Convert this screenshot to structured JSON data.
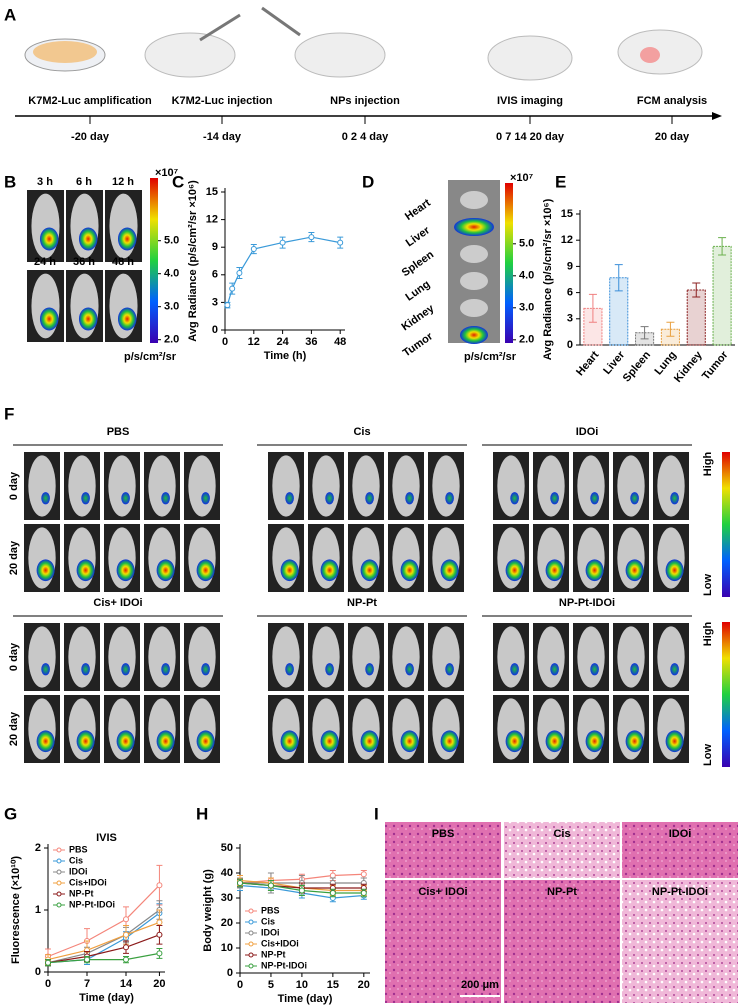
{
  "panel_labels": [
    "A",
    "B",
    "C",
    "D",
    "E",
    "F",
    "G",
    "H",
    "I"
  ],
  "timeline": {
    "steps": [
      {
        "label": "K7M2-Luc amplification",
        "day": "-20 day"
      },
      {
        "label": "K7M2-Luc injection",
        "day": "-14 day"
      },
      {
        "label": "NPs injection",
        "day": "0  2  4  day"
      },
      {
        "label": "IVIS imaging",
        "day": "0  7  14  20 day"
      },
      {
        "label": "FCM analysis",
        "day": "20 day"
      }
    ]
  },
  "panel_b": {
    "times": [
      "3 h",
      "6 h",
      "12 h",
      "24 h",
      "36 h",
      "48 h"
    ],
    "colorbar": {
      "multiplier": "×10⁷",
      "unit": "p/s/cm²/sr",
      "range": [
        1.9,
        6.9
      ],
      "ticks": [
        {
          "value": 5,
          "label": "5.0"
        },
        {
          "value": 4,
          "label": "4.0"
        },
        {
          "value": 3,
          "label": "3.0"
        },
        {
          "value": 2,
          "label": "2.0"
        }
      ]
    }
  },
  "panel_d": {
    "organs": [
      "Heart",
      "Liver",
      "Spleen",
      "Lung",
      "Kidney",
      "Tumor"
    ],
    "colorbar": {
      "multiplier": "×10⁷",
      "unit": "p/s/cm²/sr",
      "range": [
        1.9,
        6.9
      ],
      "ticks": [
        {
          "value": 5,
          "label": "5.0"
        },
        {
          "value": 4,
          "label": "4.0"
        },
        {
          "value": 3,
          "label": "3.0"
        },
        {
          "value": 2,
          "label": "2.0"
        }
      ]
    }
  },
  "panel_f": {
    "groups": [
      "PBS",
      "Cis",
      "IDOi",
      "Cis+ IDOi",
      "NP-Pt",
      "NP-Pt-IDOi"
    ],
    "rows": [
      "0 day",
      "20 day"
    ],
    "scale_high": "High",
    "scale_low": "Low"
  },
  "panel_i": {
    "groups": [
      "PBS",
      "Cis",
      "IDOi",
      "Cis+ IDOi",
      "NP-Pt",
      "NP-Pt-IDOi"
    ],
    "scale_bar": "200 μm"
  },
  "chart_data": [
    {
      "type": "line",
      "ylabel": "Avg Radiance (p/s/cm²/sr ×10⁶)",
      "xlabel": "Time (h)",
      "x": [
        1,
        3,
        6,
        12,
        24,
        36,
        48
      ],
      "series": [
        {
          "color": "#3a9ad9",
          "values": [
            2.7,
            4.5,
            6.2,
            8.8,
            9.5,
            10.1,
            9.5
          ],
          "errors": [
            0.3,
            0.6,
            0.6,
            0.5,
            0.6,
            0.5,
            0.6
          ]
        }
      ],
      "xlim": [
        0,
        50
      ],
      "xticks": [
        0,
        12,
        24,
        36,
        48
      ],
      "ylim": [
        0,
        15
      ],
      "yticks": [
        0,
        3,
        6,
        9,
        12,
        15
      ]
    },
    {
      "type": "bar",
      "ylabel": "Avg Radiance (p/s/cm²/sr ×10⁶)",
      "categories": [
        "Heart",
        "Liver",
        "Spleen",
        "Lung",
        "Kidney",
        "Tumor"
      ],
      "values": [
        4.2,
        7.7,
        1.4,
        1.8,
        6.3,
        11.3
      ],
      "errors": [
        1.6,
        1.5,
        0.7,
        0.8,
        0.8,
        1.0
      ],
      "colors": [
        "#f08080",
        "#3b8fd9",
        "#777777",
        "#e8a040",
        "#8b2020",
        "#6ab04c"
      ],
      "ylim": [
        0,
        15
      ],
      "yticks": [
        0,
        3,
        6,
        9,
        12,
        15
      ]
    },
    {
      "type": "line",
      "title": "IVIS",
      "ylabel": "Fluorescence (×10¹⁰)",
      "xlabel": "Time (day)",
      "x": [
        0,
        7,
        14,
        20
      ],
      "legend": "upper left",
      "series": [
        {
          "name": "PBS",
          "color": "#f4857a",
          "values": [
            0.25,
            0.5,
            0.85,
            1.4
          ],
          "errors": [
            0.12,
            0.2,
            0.2,
            0.32
          ]
        },
        {
          "name": "Cis",
          "color": "#3a9ad9",
          "values": [
            0.15,
            0.2,
            0.55,
            0.95
          ],
          "errors": [
            0.05,
            0.08,
            0.1,
            0.15
          ]
        },
        {
          "name": "IDOi",
          "color": "#888888",
          "values": [
            0.15,
            0.3,
            0.6,
            1.0
          ],
          "errors": [
            0.05,
            0.1,
            0.12,
            0.15
          ]
        },
        {
          "name": "Cis+IDOi",
          "color": "#f0a040",
          "values": [
            0.2,
            0.35,
            0.6,
            0.8
          ],
          "errors": [
            0.08,
            0.15,
            0.15,
            0.2
          ]
        },
        {
          "name": "NP-Pt",
          "color": "#8b1a1a",
          "values": [
            0.15,
            0.25,
            0.4,
            0.6
          ],
          "errors": [
            0.05,
            0.08,
            0.1,
            0.15
          ]
        },
        {
          "name": "NP-Pt-IDOi",
          "color": "#3aa040",
          "values": [
            0.15,
            0.2,
            0.2,
            0.3
          ],
          "errors": [
            0.05,
            0.05,
            0.05,
            0.08
          ]
        }
      ],
      "xlim": [
        0,
        21
      ],
      "xticks": [
        0,
        7,
        14,
        20
      ],
      "ylim": [
        0,
        2
      ],
      "yticks": [
        0,
        1,
        2
      ]
    },
    {
      "type": "line",
      "ylabel": "Body weight (g)",
      "xlabel": "Time (day)",
      "x": [
        0,
        5,
        10,
        15,
        20
      ],
      "legend": "lower left",
      "series": [
        {
          "name": "PBS",
          "color": "#f4857a",
          "values": [
            36,
            37,
            37.5,
            39,
            39.5
          ],
          "errors": [
            2,
            3,
            2,
            2,
            1.5
          ]
        },
        {
          "name": "Cis",
          "color": "#3a9ad9",
          "values": [
            35,
            34,
            32,
            30,
            31
          ],
          "errors": [
            2,
            2,
            2,
            1.5,
            1.5
          ]
        },
        {
          "name": "IDOi",
          "color": "#888888",
          "values": [
            36,
            36,
            36,
            36,
            36
          ],
          "errors": [
            2,
            4,
            3,
            2,
            2
          ]
        },
        {
          "name": "Cis+IDOi",
          "color": "#f0a040",
          "values": [
            37,
            36,
            34,
            33,
            33
          ],
          "errors": [
            2,
            2,
            2,
            2,
            2
          ]
        },
        {
          "name": "NP-Pt",
          "color": "#8b1a1a",
          "values": [
            36,
            35,
            34,
            34,
            34
          ],
          "errors": [
            1.5,
            2,
            2,
            1.5,
            1.5
          ]
        },
        {
          "name": "NP-Pt-IDOi",
          "color": "#3aa040",
          "values": [
            36,
            35,
            33,
            32,
            32
          ],
          "errors": [
            1.5,
            2,
            2,
            1.5,
            1.5
          ]
        }
      ],
      "xlim": [
        0,
        21
      ],
      "xticks": [
        0,
        5,
        10,
        15,
        20
      ],
      "ylim": [
        0,
        50
      ],
      "yticks": [
        0,
        10,
        20,
        30,
        40,
        50
      ]
    }
  ]
}
